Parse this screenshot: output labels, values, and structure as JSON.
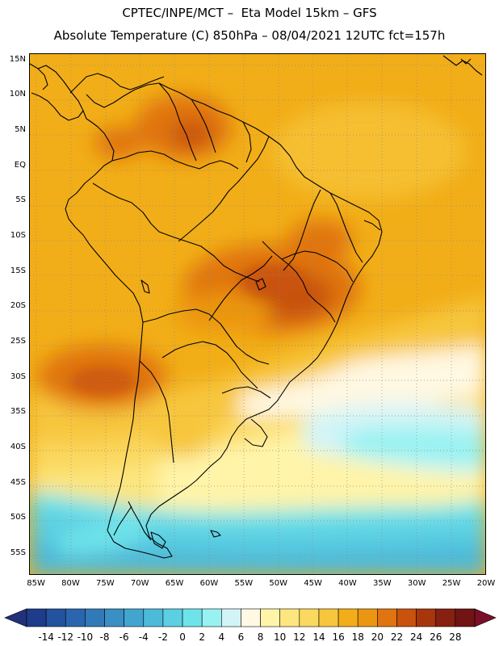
{
  "header": {
    "line1": "CPTEC/INPE/MCT –  Eta Model 15km – GFS",
    "line2": "Absolute Temperature (C) 850hPa – 08/04/2021 12UTC fct=157h"
  },
  "map": {
    "lat_labels": [
      "15N",
      "10N",
      "5N",
      "EQ",
      "5S",
      "10S",
      "15S",
      "20S",
      "25S",
      "30S",
      "35S",
      "40S",
      "45S",
      "50S",
      "55S"
    ],
    "lon_labels": [
      "85W",
      "80W",
      "75W",
      "70W",
      "65W",
      "60W",
      "55W",
      "50W",
      "45W",
      "40W",
      "35W",
      "30W",
      "25W",
      "20W"
    ],
    "lat_values": [
      15,
      10,
      5,
      0,
      -5,
      -10,
      -15,
      -20,
      -25,
      -30,
      -35,
      -40,
      -45,
      -50,
      -55
    ],
    "lon_values": [
      -85,
      -80,
      -75,
      -70,
      -65,
      -60,
      -55,
      -50,
      -45,
      -40,
      -35,
      -30,
      -25,
      -20
    ],
    "lat_range": [
      -58,
      16
    ],
    "lon_range": [
      -86,
      -20
    ],
    "grid": "dotted",
    "coastline_color": "#000000"
  },
  "colorbar": {
    "labels": [
      "-14",
      "-12",
      "-10",
      "-8",
      "-6",
      "-4",
      "-2",
      "0",
      "2",
      "4",
      "6",
      "8",
      "10",
      "12",
      "14",
      "16",
      "18",
      "20",
      "22",
      "24",
      "26",
      "28"
    ],
    "colors": [
      "#1e3c8c",
      "#23529e",
      "#2a66b0",
      "#317ab8",
      "#3a8fc4",
      "#42a5cf",
      "#4dbad9",
      "#5ccfe2",
      "#6ee3ea",
      "#99f2f2",
      "#d2f4f7",
      "#fff8e2",
      "#fff4a8",
      "#fde680",
      "#fbd85e",
      "#f7c63c",
      "#f2ae18",
      "#eb9610",
      "#e07410",
      "#c8520e",
      "#a8360c",
      "#862010",
      "#701414"
    ]
  }
}
